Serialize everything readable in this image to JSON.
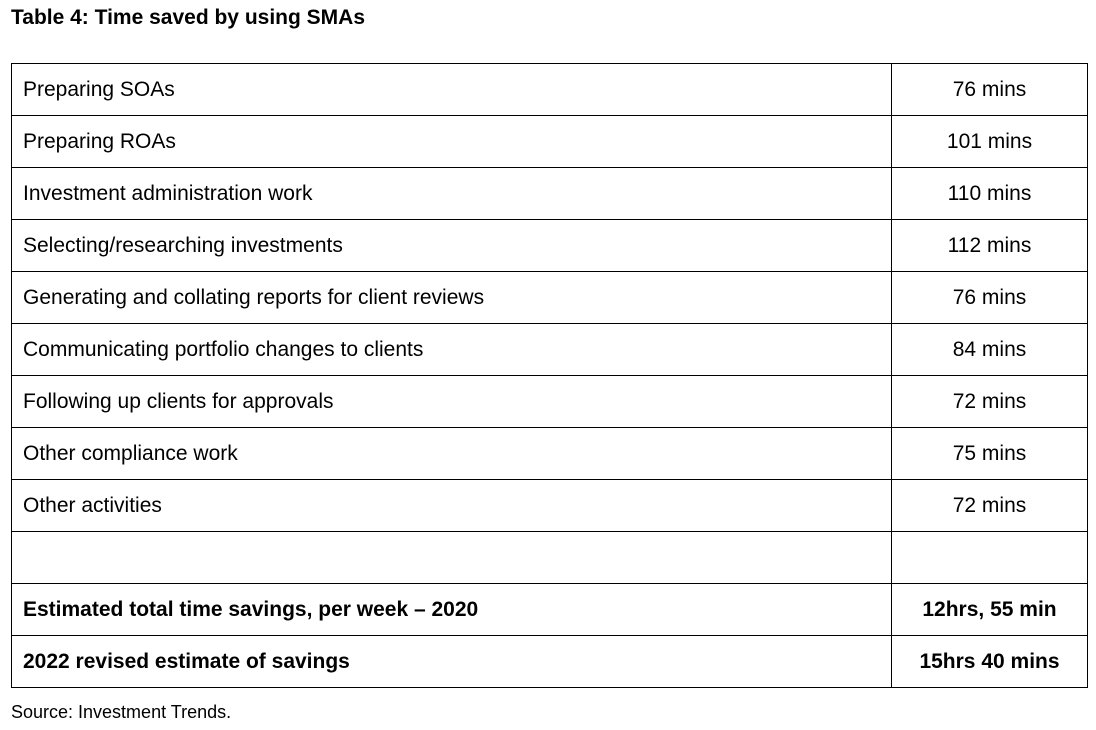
{
  "header": {
    "title": "Table 4: Time saved by using SMAs"
  },
  "table": {
    "rows": [
      [
        "Preparing SOAs",
        "76 mins"
      ],
      [
        "Preparing ROAs",
        "101 mins"
      ],
      [
        "Investment administration work",
        "110 mins"
      ],
      [
        "Selecting/researching investments",
        "112 mins"
      ],
      [
        "Generating and collating reports for client reviews",
        "76 mins"
      ],
      [
        "Communicating portfolio changes to clients",
        "84 mins"
      ],
      [
        "Following up clients for approvals",
        "72 mins"
      ],
      [
        "Other compliance work",
        "75 mins"
      ],
      [
        "Other activities",
        "72 mins"
      ]
    ],
    "totals": [
      [
        "Estimated total time savings, per week – 2020",
        "12hrs, 55 min"
      ],
      [
        "2022 revised estimate of savings",
        "15hrs 40 mins"
      ]
    ]
  },
  "footer": {
    "source": "Source: Investment Trends."
  }
}
